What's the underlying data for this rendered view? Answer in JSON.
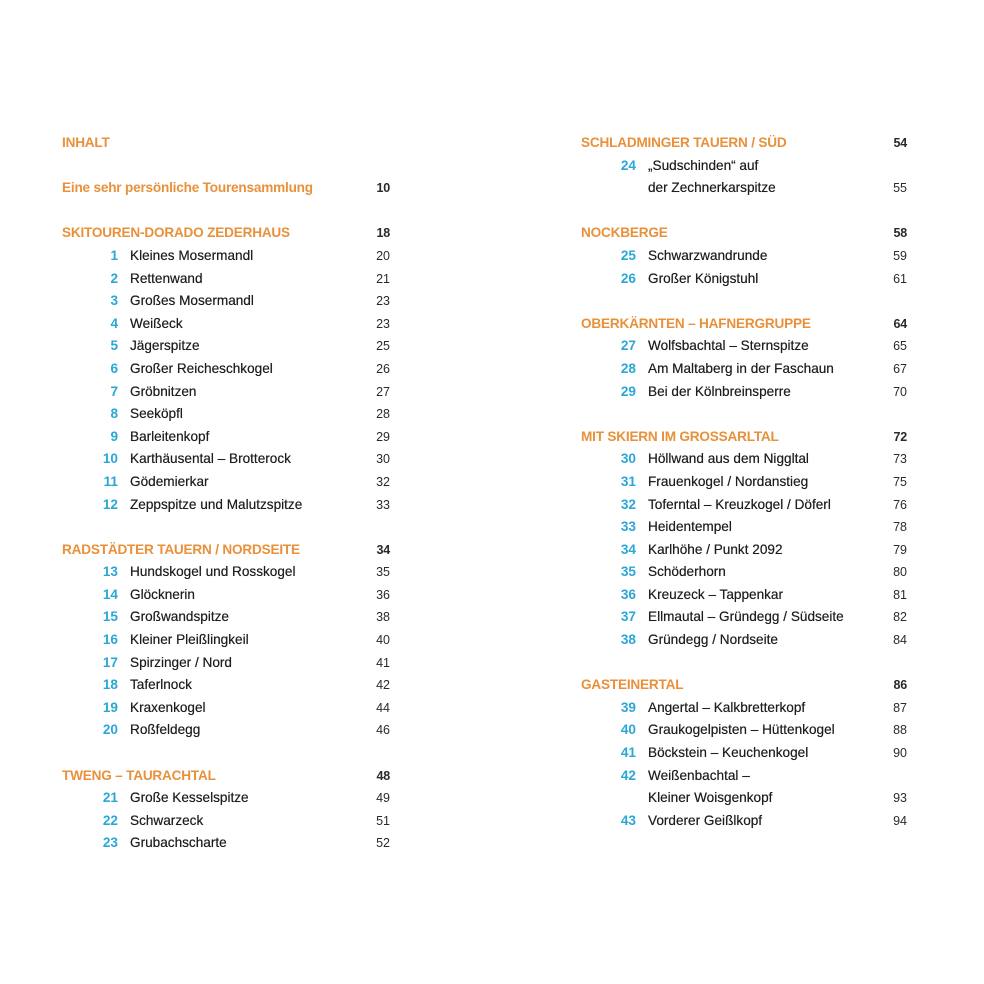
{
  "colors": {
    "heading": "#e8913a",
    "number": "#2aa7d6",
    "text": "#1e1e1e"
  },
  "left": [
    {
      "type": "head",
      "title": "INHALT",
      "page": ""
    },
    {
      "type": "blank"
    },
    {
      "type": "head",
      "title": "Eine sehr persönliche Tourensammlung",
      "page": "10"
    },
    {
      "type": "blank"
    },
    {
      "type": "head",
      "title": "SKITOUREN-DORADO ZEDERHAUS",
      "page": "18"
    },
    {
      "type": "item",
      "num": "1",
      "title": "Kleines Mosermandl",
      "page": "20"
    },
    {
      "type": "item",
      "num": "2",
      "title": "Rettenwand",
      "page": "21"
    },
    {
      "type": "item",
      "num": "3",
      "title": "Großes Mosermandl",
      "page": "23"
    },
    {
      "type": "item",
      "num": "4",
      "title": "Weißeck",
      "page": "23"
    },
    {
      "type": "item",
      "num": "5",
      "title": "Jägerspitze",
      "page": "25"
    },
    {
      "type": "item",
      "num": "6",
      "title": "Großer Reicheschkogel",
      "page": "26"
    },
    {
      "type": "item",
      "num": "7",
      "title": "Gröbnitzen",
      "page": "27"
    },
    {
      "type": "item",
      "num": "8",
      "title": "Seeköpfl",
      "page": "28"
    },
    {
      "type": "item",
      "num": "9",
      "title": "Barleitenkopf",
      "page": "29"
    },
    {
      "type": "item",
      "num": "10",
      "title": "Karthäusental – Brotterock",
      "page": "30"
    },
    {
      "type": "item",
      "num": "11",
      "title": "Gödemierkar",
      "page": "32"
    },
    {
      "type": "item",
      "num": "12",
      "title": "Zeppspitze und Malutzspitze",
      "page": "33"
    },
    {
      "type": "blank"
    },
    {
      "type": "head",
      "title": "RADSTÄDTER TAUERN / NORDSEITE",
      "page": "34"
    },
    {
      "type": "item",
      "num": "13",
      "title": "Hundskogel und Rosskogel",
      "page": "35"
    },
    {
      "type": "item",
      "num": "14",
      "title": "Glöcknerin",
      "page": "36"
    },
    {
      "type": "item",
      "num": "15",
      "title": "Großwandspitze",
      "page": "38"
    },
    {
      "type": "item",
      "num": "16",
      "title": "Kleiner Pleißlingkeil",
      "page": "40"
    },
    {
      "type": "item",
      "num": "17",
      "title": "Spirzinger / Nord",
      "page": "41"
    },
    {
      "type": "item",
      "num": "18",
      "title": "Taferlnock",
      "page": "42"
    },
    {
      "type": "item",
      "num": "19",
      "title": "Kraxenkogel",
      "page": "44"
    },
    {
      "type": "item",
      "num": "20",
      "title": "Roßfeldegg",
      "page": "46"
    },
    {
      "type": "blank"
    },
    {
      "type": "head",
      "title": "TWENG – TAURACHTAL",
      "page": "48"
    },
    {
      "type": "item",
      "num": "21",
      "title": "Große Kesselspitze",
      "page": "49"
    },
    {
      "type": "item",
      "num": "22",
      "title": "Schwarzeck",
      "page": "51"
    },
    {
      "type": "item",
      "num": "23",
      "title": "Grubachscharte",
      "page": "52"
    }
  ],
  "right": [
    {
      "type": "head",
      "title": "SCHLADMINGER TAUERN / SÜD",
      "page": "54"
    },
    {
      "type": "item",
      "num": "24",
      "title": "„Sudschinden“ auf",
      "page": ""
    },
    {
      "type": "item",
      "num": "",
      "title": "der Zechnerkarspitze",
      "page": "55"
    },
    {
      "type": "blank"
    },
    {
      "type": "head",
      "title": "NOCKBERGE",
      "page": "58"
    },
    {
      "type": "item",
      "num": "25",
      "title": "Schwarzwandrunde",
      "page": "59"
    },
    {
      "type": "item",
      "num": "26",
      "title": "Großer Königstuhl",
      "page": "61"
    },
    {
      "type": "blank"
    },
    {
      "type": "head",
      "title": "OBERKÄRNTEN – HAFNERGRUPPE",
      "page": "64"
    },
    {
      "type": "item",
      "num": "27",
      "title": "Wolfsbachtal – Sternspitze",
      "page": "65"
    },
    {
      "type": "item",
      "num": "28",
      "title": "Am Maltaberg in der Faschaun",
      "page": "67"
    },
    {
      "type": "item",
      "num": "29",
      "title": "Bei der Kölnbreinsperre",
      "page": "70"
    },
    {
      "type": "blank"
    },
    {
      "type": "head",
      "title": "MIT SKIERN IM GROSSARLTAL",
      "page": "72"
    },
    {
      "type": "item",
      "num": "30",
      "title": "Höllwand aus dem Niggltal",
      "page": "73"
    },
    {
      "type": "item",
      "num": "31",
      "title": "Frauenkogel / Nordanstieg",
      "page": "75"
    },
    {
      "type": "item",
      "num": "32",
      "title": "Toferntal – Kreuzkogel / Döferl",
      "page": "76"
    },
    {
      "type": "item",
      "num": "33",
      "title": "Heidentempel",
      "page": "78"
    },
    {
      "type": "item",
      "num": "34",
      "title": "Karlhöhe / Punkt 2092",
      "page": "79"
    },
    {
      "type": "item",
      "num": "35",
      "title": "Schöderhorn",
      "page": "80"
    },
    {
      "type": "item",
      "num": "36",
      "title": "Kreuzeck – Tappenkar",
      "page": "81"
    },
    {
      "type": "item",
      "num": "37",
      "title": "Ellmautal – Gründegg / Südseite",
      "page": "82"
    },
    {
      "type": "item",
      "num": "38",
      "title": "Gründegg / Nordseite",
      "page": "84"
    },
    {
      "type": "blank"
    },
    {
      "type": "head",
      "title": "GASTEINERTAL",
      "page": "86"
    },
    {
      "type": "item",
      "num": "39",
      "title": "Angertal – Kalkbretterkopf",
      "page": "87"
    },
    {
      "type": "item",
      "num": "40",
      "title": "Graukogelpisten – Hüttenkogel",
      "page": "88"
    },
    {
      "type": "item",
      "num": "41",
      "title": "Böckstein – Keuchenkogel",
      "page": "90"
    },
    {
      "type": "item",
      "num": "42",
      "title": "Weißenbachtal –",
      "page": ""
    },
    {
      "type": "item",
      "num": "",
      "title": "Kleiner Woisgenkopf",
      "page": "93"
    },
    {
      "type": "item",
      "num": "43",
      "title": "Vorderer Geißlkopf",
      "page": "94"
    }
  ]
}
